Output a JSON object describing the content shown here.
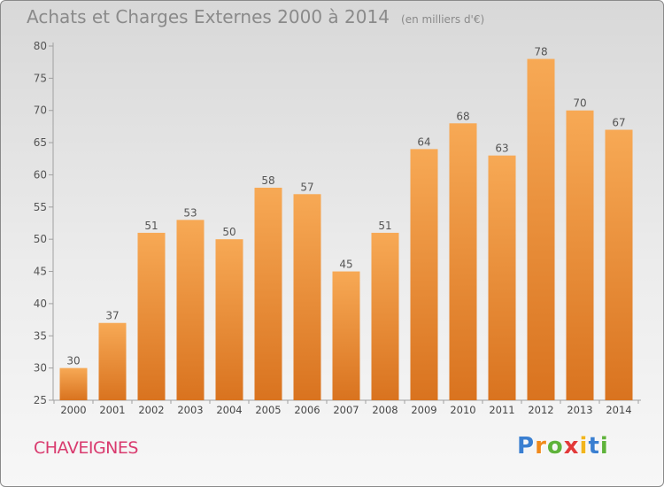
{
  "chart_data": {
    "type": "bar",
    "title": "Achats et Charges Externes 2000 à 2014",
    "subtitle": "(en milliers d'€)",
    "categories": [
      "2000",
      "2001",
      "2002",
      "2003",
      "2004",
      "2005",
      "2006",
      "2007",
      "2008",
      "2009",
      "2010",
      "2011",
      "2012",
      "2013",
      "2014"
    ],
    "values": [
      30,
      37,
      51,
      53,
      50,
      58,
      57,
      45,
      51,
      64,
      68,
      63,
      78,
      70,
      67
    ],
    "ylim": [
      25,
      80
    ],
    "yticks": [
      25,
      30,
      35,
      40,
      45,
      50,
      55,
      60,
      65,
      70,
      75,
      80
    ],
    "grid": false,
    "bar_color_top": "#f7a955",
    "bar_color_bottom": "#d9731f"
  },
  "place_name": "CHAVEIGNES",
  "brand": {
    "text": "Proxiti",
    "letters": [
      "P",
      "r",
      "o",
      "x",
      "i",
      "t",
      "i"
    ],
    "colors": [
      "#3a7fd1",
      "#f08a1c",
      "#5fb33b",
      "#e23a3a",
      "#f2b51c",
      "#3a7fd1",
      "#5fb33b"
    ]
  }
}
